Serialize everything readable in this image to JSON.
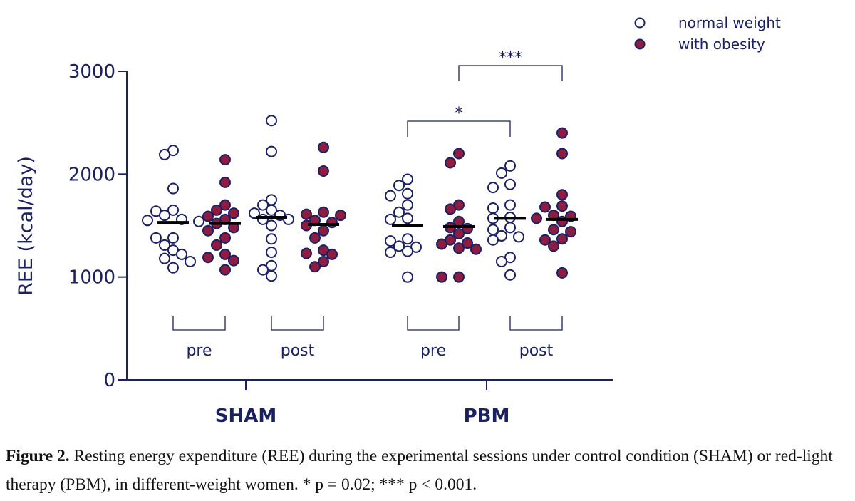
{
  "chart_data": {
    "type": "scatter",
    "title": "",
    "ylabel": "REE (kcal/day)",
    "ylim": [
      0,
      3000
    ],
    "yticks": [
      0,
      1000,
      2000,
      3000
    ],
    "grid": false,
    "legend": {
      "placement": "top-right",
      "entries": [
        {
          "name": "normal weight",
          "marker": "open-circle"
        },
        {
          "name": "with obesity",
          "marker": "filled-circle"
        }
      ]
    },
    "conditions": [
      "SHAM",
      "PBM"
    ],
    "sessions": [
      "pre",
      "post"
    ],
    "colors": {
      "axis": "#1b2060",
      "obesity_fill": "#8e1c40",
      "mean_line": "#000000"
    },
    "series": [
      {
        "condition": "SHAM",
        "session": "pre",
        "group": "normal weight",
        "mean": 1530,
        "values": [
          2230,
          2190,
          1860,
          1650,
          1640,
          1600,
          1560,
          1550,
          1540,
          1380,
          1380,
          1310,
          1260,
          1220,
          1180,
          1150,
          1090
        ]
      },
      {
        "condition": "SHAM",
        "session": "pre",
        "group": "with obesity",
        "mean": 1520,
        "values": [
          2140,
          1920,
          1700,
          1650,
          1620,
          1590,
          1560,
          1520,
          1480,
          1450,
          1380,
          1310,
          1220,
          1190,
          1160,
          1070
        ]
      },
      {
        "condition": "SHAM",
        "session": "post",
        "group": "normal weight",
        "mean": 1580,
        "values": [
          2520,
          2220,
          1750,
          1700,
          1650,
          1620,
          1600,
          1560,
          1560,
          1500,
          1370,
          1240,
          1110,
          1070,
          1010
        ]
      },
      {
        "condition": "SHAM",
        "session": "post",
        "group": "with obesity",
        "mean": 1510,
        "values": [
          2260,
          2030,
          1630,
          1610,
          1600,
          1550,
          1530,
          1500,
          1450,
          1380,
          1260,
          1230,
          1220,
          1150,
          1100
        ]
      },
      {
        "condition": "PBM",
        "session": "pre",
        "group": "normal weight",
        "mean": 1500,
        "values": [
          1950,
          1890,
          1810,
          1790,
          1700,
          1630,
          1570,
          1560,
          1370,
          1350,
          1300,
          1290,
          1250,
          1240,
          1000
        ]
      },
      {
        "condition": "PBM",
        "session": "pre",
        "group": "with obesity",
        "mean": 1490,
        "values": [
          2200,
          2110,
          1700,
          1660,
          1540,
          1480,
          1470,
          1420,
          1360,
          1330,
          1320,
          1280,
          1270,
          1000,
          1000
        ]
      },
      {
        "condition": "PBM",
        "session": "post",
        "group": "normal weight",
        "mean": 1570,
        "values": [
          2080,
          2010,
          1900,
          1870,
          1700,
          1670,
          1580,
          1570,
          1480,
          1460,
          1400,
          1390,
          1360,
          1190,
          1150,
          1020
        ]
      },
      {
        "condition": "PBM",
        "session": "post",
        "group": "with obesity",
        "mean": 1560,
        "values": [
          2400,
          2200,
          1800,
          1690,
          1680,
          1600,
          1590,
          1570,
          1540,
          1460,
          1440,
          1370,
          1360,
          1300,
          1040
        ]
      }
    ],
    "annotations": [
      {
        "label": "*",
        "from_series": 4,
        "to_series": 6
      },
      {
        "label": "***",
        "from_series": 5,
        "to_series": 7
      }
    ]
  },
  "caption": {
    "label": "Figure 2.",
    "text": " Resting energy expenditure (REE) during the experimental sessions under control condition (SHAM) or red-light therapy (PBM), in different-weight women. * p = 0.02; *** p < 0.001."
  }
}
